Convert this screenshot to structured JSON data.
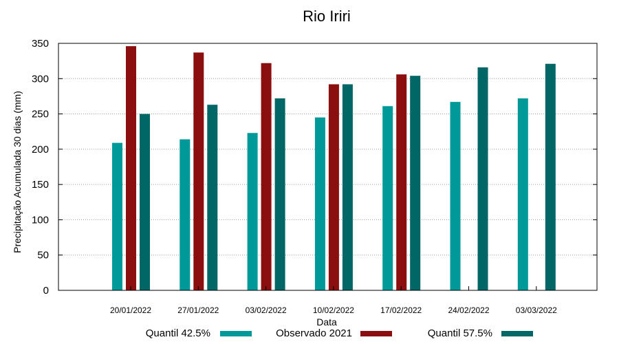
{
  "chart_data": {
    "type": "bar",
    "title": "Rio Iriri",
    "xlabel": "Data",
    "ylabel": "Precipitação Acumulada 30 dias (mm)",
    "ylim": [
      0,
      350
    ],
    "yticks": [
      0,
      50,
      100,
      150,
      200,
      250,
      300,
      350
    ],
    "grid": true,
    "legend_position": "bottom",
    "categories": [
      "20/01/2022",
      "27/01/2022",
      "03/02/2022",
      "10/02/2022",
      "17/02/2022",
      "24/02/2022",
      "03/03/2022"
    ],
    "series": [
      {
        "name": "Quantil 42.5%",
        "color": "#009999",
        "values": [
          209,
          214,
          223,
          245,
          261,
          267,
          272
        ]
      },
      {
        "name": "Observado 2021",
        "color": "#8b0f0f",
        "values": [
          346,
          337,
          322,
          292,
          306,
          null,
          null
        ]
      },
      {
        "name": "Quantil 57.5%",
        "color": "#006666",
        "values": [
          250,
          263,
          272,
          292,
          304,
          316,
          321
        ]
      }
    ]
  }
}
